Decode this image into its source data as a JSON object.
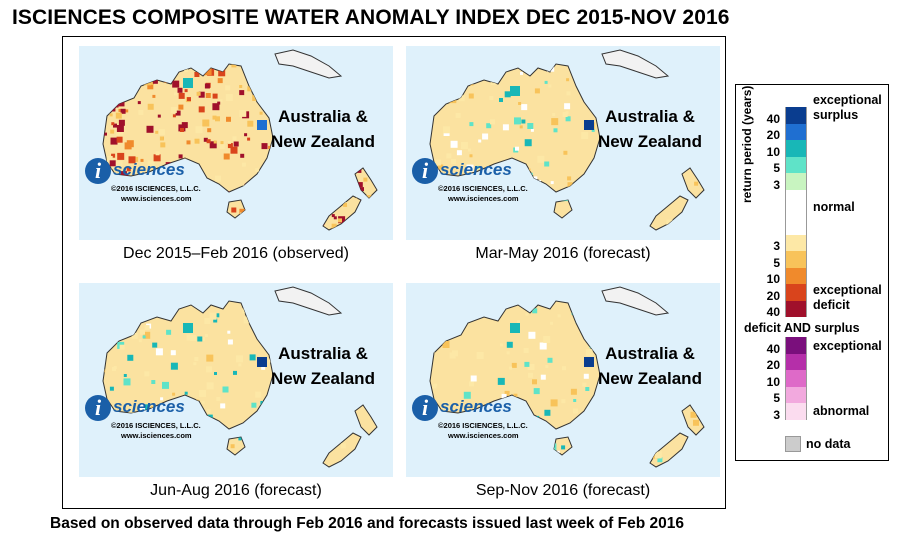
{
  "title": "ISCIENCES COMPOSITE WATER ANOMALY INDEX DEC 2015-NOV 2016",
  "panels": [
    {
      "region_label": "Australia &\nNew Zealand",
      "caption": "Dec 2015–Feb 2016 (observed)",
      "intensity": "high"
    },
    {
      "region_label": "Australia &\nNew Zealand",
      "caption": "Mar-May 2016 (forecast)",
      "intensity": "low"
    },
    {
      "region_label": "Australia &\nNew Zealand",
      "caption": "Jun-Aug 2016 (forecast)",
      "intensity": "low"
    },
    {
      "region_label": "Australia &\nNew Zealand",
      "caption": "Sep-Nov 2016 (forecast)",
      "intensity": "low"
    }
  ],
  "logo": {
    "word": "sciences",
    "letter": "i",
    "copyright": "©2016  ISCIENCES, L.L.C.",
    "url": "www.isciences.com"
  },
  "legend": {
    "axis_label": "return period (years)",
    "surplus_label": "exceptional\nsurplus",
    "surplus_ticks": [
      "40",
      "20",
      "10",
      "5",
      "3"
    ],
    "normal_label": "normal",
    "deficit_ticks": [
      "3",
      "5",
      "10",
      "20",
      "40"
    ],
    "deficit_label": "exceptional\ndeficit",
    "both_title": "deficit AND surplus",
    "both_exceptional": "exceptional",
    "both_ticks": [
      "40",
      "20",
      "10",
      "5",
      "3"
    ],
    "both_abnormal": "abnormal",
    "nodata_label": "no data",
    "surplus_colors": [
      "#0a3d8f",
      "#1f6fd1",
      "#18b7b7",
      "#5fe3c8",
      "#c8f4c0"
    ],
    "deficit_colors": [
      "#fde8a6",
      "#f8c35a",
      "#f08a2c",
      "#d9441c",
      "#a0102b"
    ],
    "both_colors": [
      "#7a0f7c",
      "#b52fa9",
      "#de6ac8",
      "#f2a9de",
      "#fbdcef"
    ],
    "normal_color": "#ffffff",
    "nodata_color": "#cccccc"
  },
  "footer": "Based on observed data through Feb 2016 and forecasts issued last week of Feb 2016"
}
